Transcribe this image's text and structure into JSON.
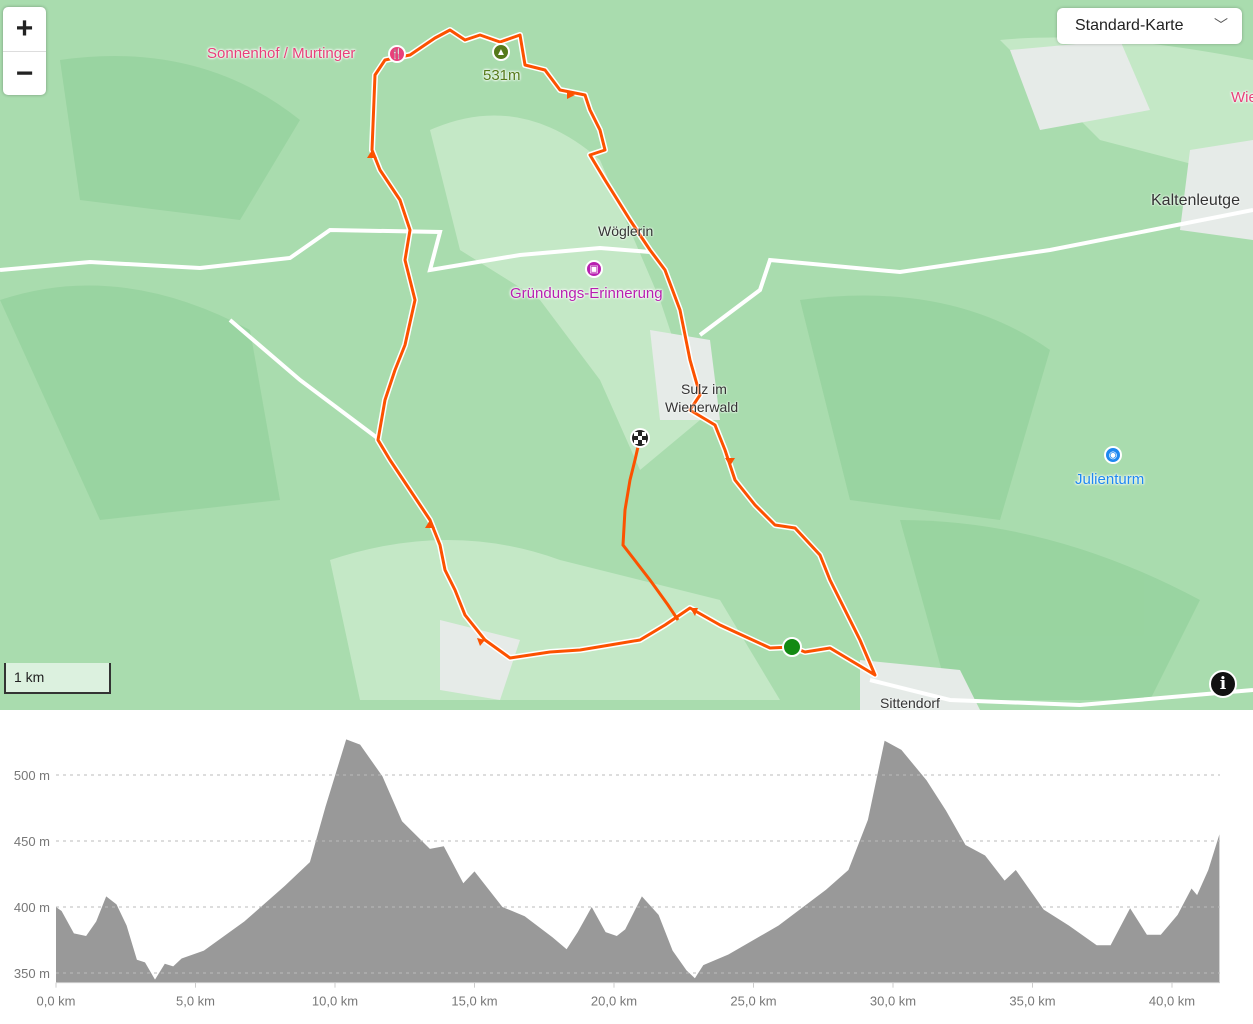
{
  "map": {
    "zoom_in": "+",
    "zoom_out": "−",
    "layer_select": "Standard-Karte",
    "scale_label": "1 km",
    "info_icon": "i",
    "labels": {
      "sonnenhof": "Sonnenhof / Murtinger",
      "peak": "531m",
      "woeglerin": "Wöglerin",
      "gruendung": "Gründungs-Erinnerung",
      "sulz1": "Sulz im",
      "sulz2": "Wienerwald",
      "julienturm": "Julienturm",
      "kaltenleutgeben": "Kaltenleutge",
      "sittendorf": "Sittendorf",
      "wien_partial": "Wie"
    },
    "colors": {
      "route": "#fc5200",
      "start": "#138a13",
      "restaurant": "#e8407a",
      "landmark": "#b81fb0",
      "viewpoint": "#1e88f0",
      "peak": "#557a1a",
      "forest": "#a9dcae"
    }
  },
  "chart_data": {
    "type": "area",
    "xlabel": "",
    "ylabel": "",
    "xlim": [
      0,
      41.7
    ],
    "ylim": [
      345,
      530
    ],
    "x_ticks": [
      "0,0 km",
      "5,0 km",
      "10,0 km",
      "15,0 km",
      "20,0 km",
      "25,0 km",
      "30,0 km",
      "35,0 km",
      "40,0 km"
    ],
    "y_ticks": [
      "350 m",
      "400 m",
      "450 m",
      "500 m"
    ],
    "grid": true,
    "series": [
      {
        "color": "#999999",
        "x": [
          0,
          0.2,
          0.64,
          1.08,
          1.44,
          1.8,
          2.17,
          2.53,
          2.9,
          3.19,
          3.55,
          3.9,
          4.2,
          4.5,
          5.3,
          6.75,
          8.2,
          9.1,
          9.66,
          10.4,
          10.9,
          11.7,
          12.4,
          13.4,
          13.9,
          14.6,
          15.0,
          16.0,
          16.8,
          17.8,
          18.3,
          18.7,
          19.2,
          19.7,
          20.1,
          20.4,
          21.0,
          21.6,
          22.1,
          22.6,
          22.9,
          23.2,
          24.1,
          25.9,
          27.6,
          28.4,
          29.1,
          29.7,
          30.3,
          31.2,
          31.9,
          32.6,
          33.3,
          34.0,
          34.4,
          35.4,
          36.3,
          37.3,
          37.8,
          38.5,
          39.1,
          39.6,
          40.2,
          40.7,
          40.9,
          41.3,
          41.7
        ],
        "y": [
          400,
          397,
          380,
          378,
          389,
          408,
          402,
          386,
          360,
          358,
          345,
          357,
          355,
          361,
          367,
          389,
          416,
          434,
          476,
          527,
          523,
          499,
          465,
          444,
          446,
          418,
          427,
          400,
          393,
          377,
          368,
          381,
          400,
          381,
          378,
          383,
          408,
          394,
          367,
          352,
          346,
          356,
          364,
          386,
          413,
          428,
          466,
          526,
          519,
          496,
          473,
          447,
          439,
          420,
          428,
          398,
          386,
          371,
          371,
          399,
          379,
          379,
          394,
          414,
          409,
          428,
          455
        ]
      }
    ]
  }
}
